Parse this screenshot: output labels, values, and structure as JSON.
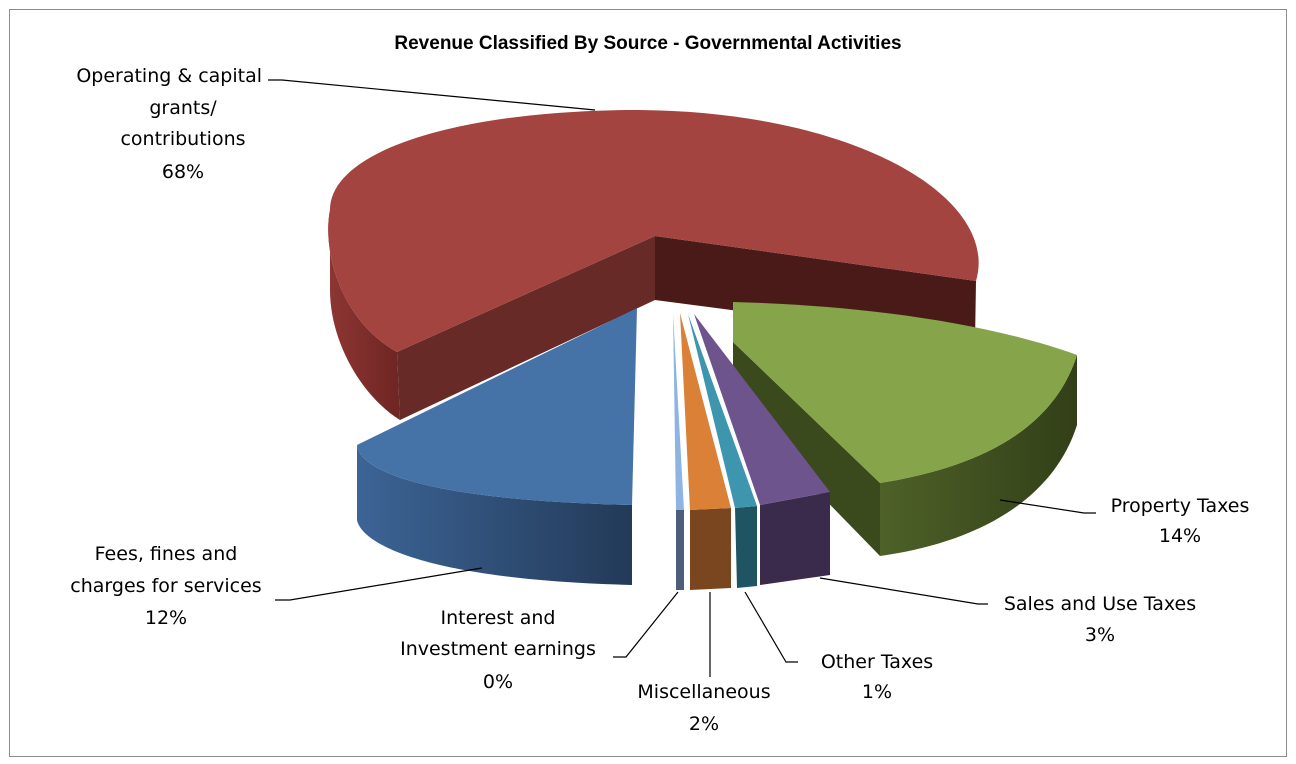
{
  "chart_data": {
    "type": "pie",
    "title": "Revenue Classified By Source - Governmental Activities",
    "slices": [
      {
        "label": "Operating & capital grants/ contributions",
        "value_label": "68%",
        "value": 68,
        "color": "#a44441"
      },
      {
        "label": "Property Taxes",
        "value_label": "14%",
        "value": 14,
        "color": "#86a44a"
      },
      {
        "label": "Sales and Use Taxes",
        "value_label": "3%",
        "value": 3,
        "color": "#6e548d"
      },
      {
        "label": "Other Taxes",
        "value_label": "1%",
        "value": 1,
        "color": "#3d96ae"
      },
      {
        "label": "Miscellaneous",
        "value_label": "2%",
        "value": 2,
        "color": "#da8137"
      },
      {
        "label": "Interest and Investment earnings",
        "value_label": "0%",
        "value": 0,
        "color": "#8eb4e3"
      },
      {
        "label": "Fees, fines and charges for services",
        "value_label": "12%",
        "value": 12,
        "color": "#4572a7"
      }
    ],
    "label_lines": {
      "operating": [
        "Operating & capital",
        "grants/",
        "contributions"
      ],
      "property": [
        "Property Taxes"
      ],
      "sales": [
        "Sales and Use Taxes"
      ],
      "other": [
        "Other Taxes"
      ],
      "misc": [
        "Miscellaneous"
      ],
      "interest": [
        "Interest and",
        "Investment earnings"
      ],
      "fees": [
        "Fees, fines and",
        "charges for services"
      ]
    }
  }
}
